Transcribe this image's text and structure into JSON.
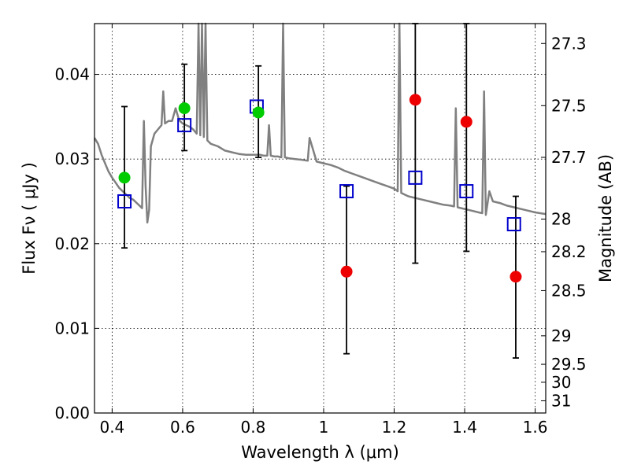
{
  "chart_data": {
    "type": "scatter",
    "xlabel": "Wavelength  λ (μm)",
    "ylabel": "Flux  Fν  ( μJy )",
    "ylabel_right": "Magnitude (AB)",
    "xlim": [
      0.35,
      1.63
    ],
    "ylim": [
      0.0,
      0.046
    ],
    "grid": true,
    "x_ticks": [
      0.4,
      0.6,
      0.8,
      1.0,
      1.2,
      1.4,
      1.6
    ],
    "x_tick_labels": [
      "0.4",
      "0.6",
      "0.8",
      "1",
      "1.2",
      "1.4",
      "1.6"
    ],
    "y_ticks": [
      0.0,
      0.01,
      0.02,
      0.03,
      0.04
    ],
    "y_tick_labels": [
      "0.00",
      "0.01",
      "0.02",
      "0.03",
      "0.04"
    ],
    "right_ticks": [
      {
        "label": "27.3",
        "mag": 27.3
      },
      {
        "label": "27.5",
        "mag": 27.5
      },
      {
        "label": "27.7",
        "mag": 27.7
      },
      {
        "label": "28",
        "mag": 28.0
      },
      {
        "label": "28.2",
        "mag": 28.2
      },
      {
        "label": "28.5",
        "mag": 28.5
      },
      {
        "label": "29",
        "mag": 29.0
      },
      {
        "label": "29.5",
        "mag": 29.5
      },
      {
        "label": "30",
        "mag": 30.0
      },
      {
        "label": "31",
        "mag": 31.0
      }
    ],
    "series": [
      {
        "kind": "line",
        "color": "#808080",
        "x": [
          0.35,
          0.36,
          0.37,
          0.38,
          0.39,
          0.4,
          0.41,
          0.42,
          0.43,
          0.44,
          0.45,
          0.46,
          0.47,
          0.48,
          0.485,
          0.49,
          0.495,
          0.5,
          0.505,
          0.51,
          0.52,
          0.53,
          0.54,
          0.545,
          0.55,
          0.56,
          0.57,
          0.58,
          0.59,
          0.6,
          0.61,
          0.62,
          0.63,
          0.64,
          0.645,
          0.65,
          0.655,
          0.66,
          0.665,
          0.67,
          0.68,
          0.7,
          0.72,
          0.74,
          0.76,
          0.78,
          0.8,
          0.82,
          0.83,
          0.84,
          0.845,
          0.85,
          0.86,
          0.87,
          0.88,
          0.885,
          0.89,
          0.9,
          0.92,
          0.94,
          0.955,
          0.96,
          0.98,
          1.0,
          1.02,
          1.04,
          1.06,
          1.08,
          1.1,
          1.12,
          1.14,
          1.16,
          1.18,
          1.2,
          1.21,
          1.215,
          1.22,
          1.23,
          1.24,
          1.26,
          1.28,
          1.3,
          1.32,
          1.34,
          1.36,
          1.37,
          1.375,
          1.38,
          1.4,
          1.42,
          1.44,
          1.45,
          1.455,
          1.46,
          1.47,
          1.48,
          1.5,
          1.52,
          1.54,
          1.56,
          1.58,
          1.6,
          1.63
        ],
        "y": [
          0.0325,
          0.0318,
          0.0305,
          0.0295,
          0.0285,
          0.0278,
          0.0272,
          0.0266,
          0.0262,
          0.0258,
          0.0254,
          0.0252,
          0.0248,
          0.0244,
          0.0242,
          0.0345,
          0.0268,
          0.0225,
          0.024,
          0.0315,
          0.033,
          0.0335,
          0.034,
          0.038,
          0.0342,
          0.0345,
          0.0345,
          0.036,
          0.0346,
          0.0342,
          0.034,
          0.0338,
          0.0335,
          0.033,
          0.046,
          0.0328,
          0.046,
          0.0326,
          0.046,
          0.0322,
          0.0318,
          0.0315,
          0.031,
          0.0308,
          0.0306,
          0.0305,
          0.0305,
          0.0305,
          0.0304,
          0.0304,
          0.034,
          0.0304,
          0.0303,
          0.0303,
          0.0302,
          0.046,
          0.0302,
          0.0301,
          0.03,
          0.0299,
          0.0298,
          0.0325,
          0.0297,
          0.0295,
          0.0293,
          0.029,
          0.0286,
          0.0283,
          0.028,
          0.0277,
          0.0274,
          0.0271,
          0.0268,
          0.0265,
          0.0262,
          0.046,
          0.026,
          0.0258,
          0.0256,
          0.0254,
          0.0252,
          0.025,
          0.0248,
          0.0246,
          0.0245,
          0.0244,
          0.036,
          0.0243,
          0.0241,
          0.0239,
          0.0237,
          0.0236,
          0.038,
          0.0234,
          0.0262,
          0.025,
          0.0248,
          0.0245,
          0.0243,
          0.0241,
          0.0239,
          0.0237,
          0.0235
        ]
      },
      {
        "kind": "open-square",
        "color": "#0000cc",
        "x": [
          0.435,
          0.605,
          0.81,
          1.065,
          1.26,
          1.405,
          1.54
        ],
        "y": [
          0.025,
          0.034,
          0.0362,
          0.0262,
          0.0278,
          0.0262,
          0.0223
        ]
      },
      {
        "kind": "circle",
        "color": "#00cc00",
        "x": [
          0.435,
          0.605,
          0.815
        ],
        "y": [
          0.0278,
          0.036,
          0.0355
        ],
        "yerr_low": [
          0.0195,
          0.031,
          0.0302
        ],
        "yerr_high": [
          0.0362,
          0.0412,
          0.041
        ]
      },
      {
        "kind": "circle",
        "color": "#ee0000",
        "x": [
          1.065,
          1.26,
          1.405,
          1.545
        ],
        "y": [
          0.0167,
          0.037,
          0.0344,
          0.0161
        ],
        "yerr_low": [
          0.007,
          0.0177,
          0.0191,
          0.0065
        ],
        "yerr_high": [
          0.0268,
          0.046,
          0.046,
          0.0256
        ]
      }
    ]
  }
}
